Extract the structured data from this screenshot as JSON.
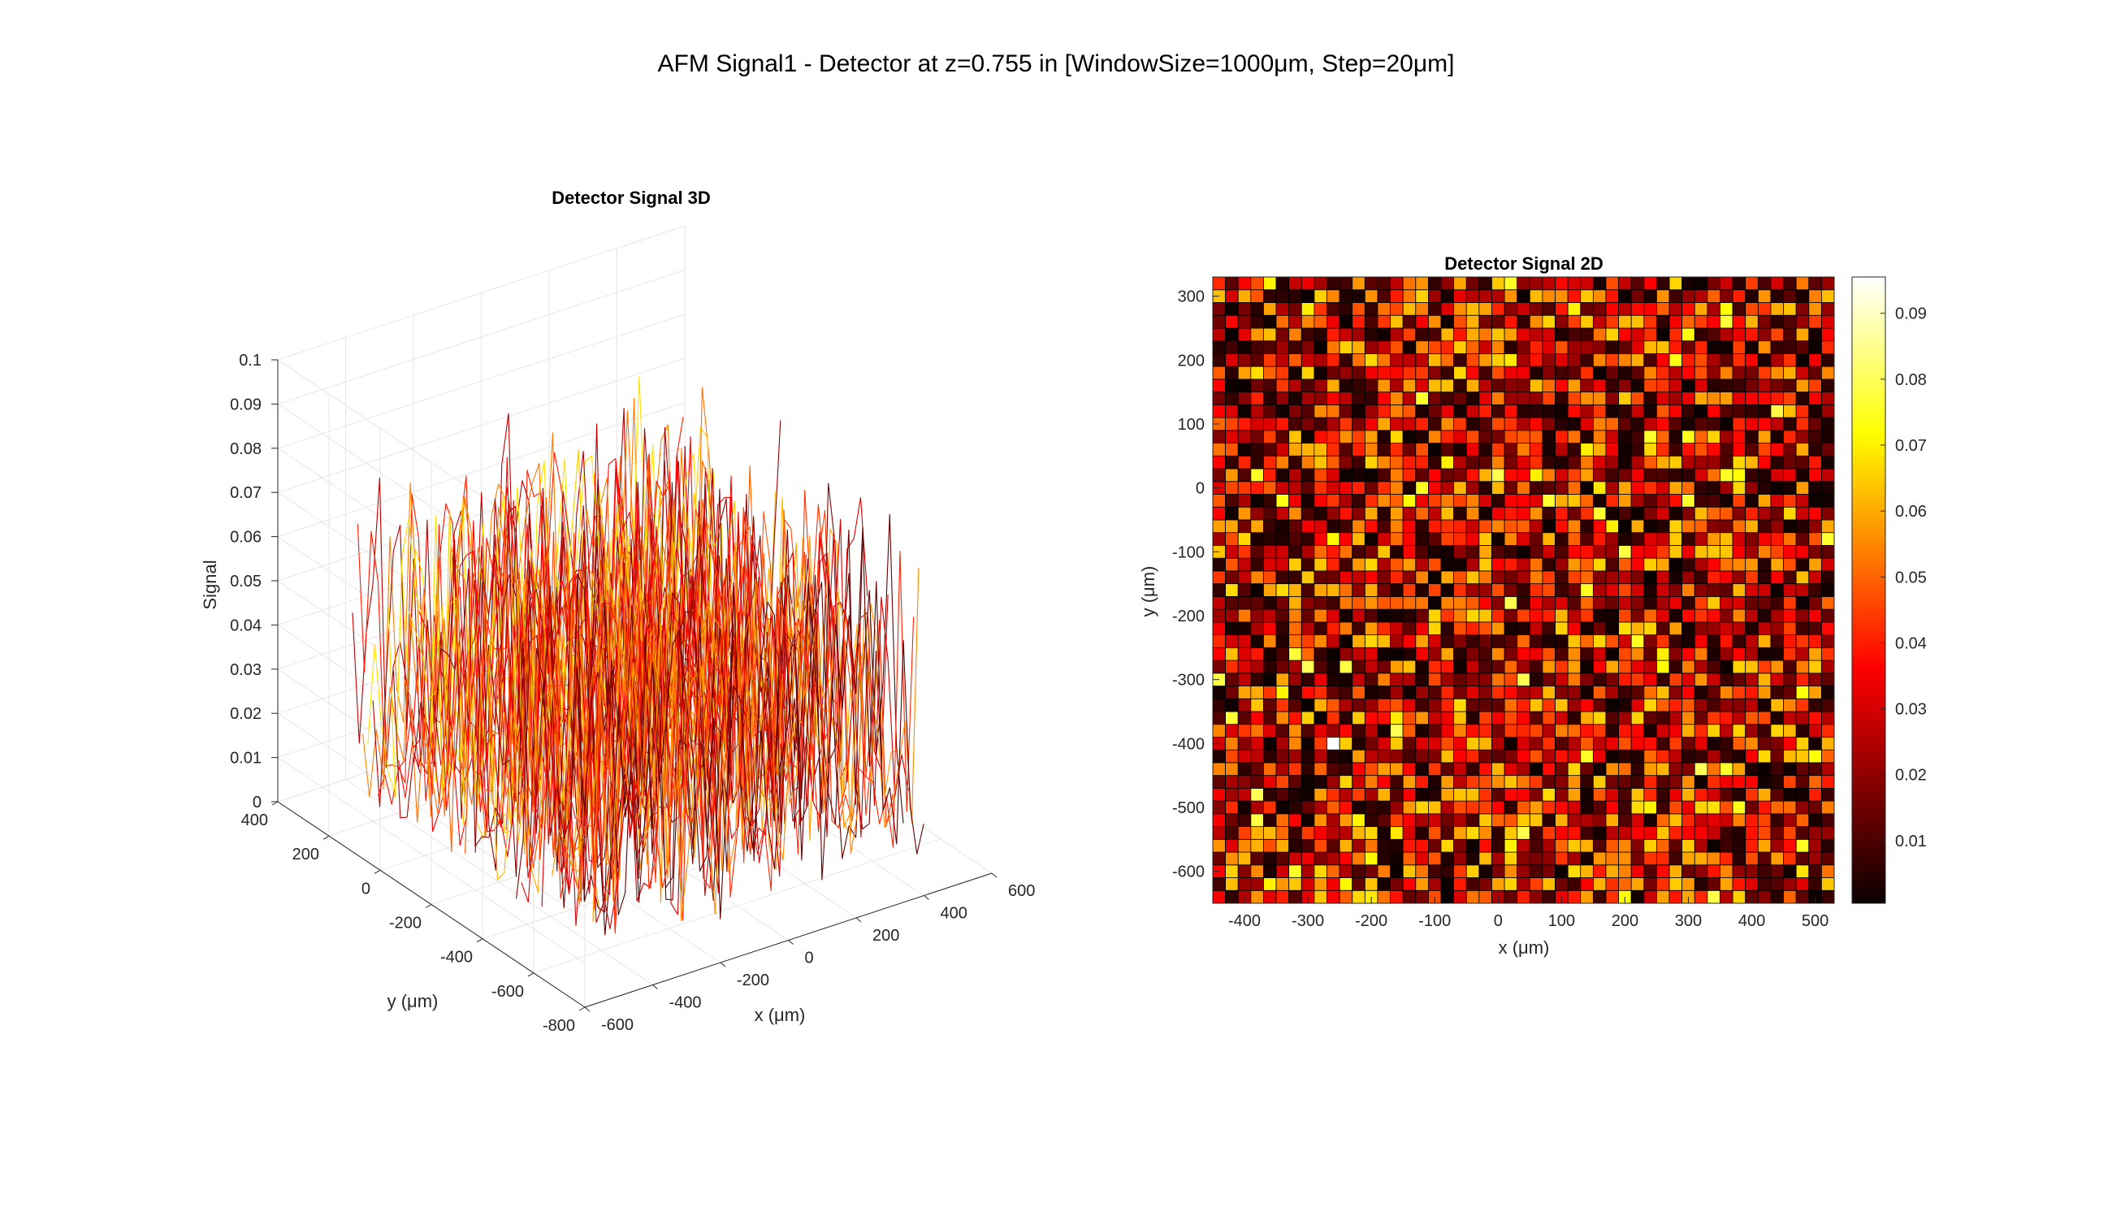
{
  "figure": {
    "title": "AFM Signal1 - Detector at z=0.755 in [WindowSize=1000μm, Step=20μm]"
  },
  "colors": {
    "axis": "#262626",
    "grid": "#e6e6e6",
    "colormap": "hot"
  },
  "chart_data": [
    {
      "type": "line",
      "subtype": "3d-waterfall",
      "title": "Detector Signal 3D",
      "xlabel": "x (μm)",
      "ylabel": "y (μm)",
      "zlabel": "Signal",
      "xlim": [
        -600,
        600
      ],
      "ylim": [
        -800,
        400
      ],
      "zlim": [
        0,
        0.1
      ],
      "xticks": [
        -600,
        -400,
        -200,
        0,
        200,
        400,
        600
      ],
      "yticks": [
        -800,
        -600,
        -400,
        -200,
        0,
        200,
        400
      ],
      "zticks": [
        0,
        0.01,
        0.02,
        0.03,
        0.04,
        0.05,
        0.06,
        0.07,
        0.08,
        0.09,
        0.1
      ],
      "grid": true,
      "colormap": "hot",
      "data_x_range": [
        -440,
        540
      ],
      "data_y_range": [
        -640,
        340
      ],
      "step": 20
    },
    {
      "type": "heatmap",
      "title": "Detector Signal 2D",
      "xlabel": "x (μm)",
      "ylabel": "y (μm)",
      "xlim": [
        -450,
        530
      ],
      "ylim": [
        -650,
        330
      ],
      "xticks": [
        -400,
        -300,
        -200,
        -100,
        0,
        100,
        200,
        300,
        400,
        500
      ],
      "yticks": [
        -600,
        -500,
        -400,
        -300,
        -200,
        -100,
        0,
        100,
        200,
        300
      ],
      "colormap": "hot",
      "colorbar_range": [
        0.0005,
        0.0955
      ],
      "colorbar_ticks": [
        0.01,
        0.02,
        0.03,
        0.04,
        0.05,
        0.06,
        0.07,
        0.08,
        0.09
      ],
      "grid_x_start": -440,
      "grid_y_start": -640,
      "step": 20,
      "n": 49,
      "value_distribution": "uniform-random, mean ≈ 0.028, range 0.0005–0.0955"
    }
  ]
}
